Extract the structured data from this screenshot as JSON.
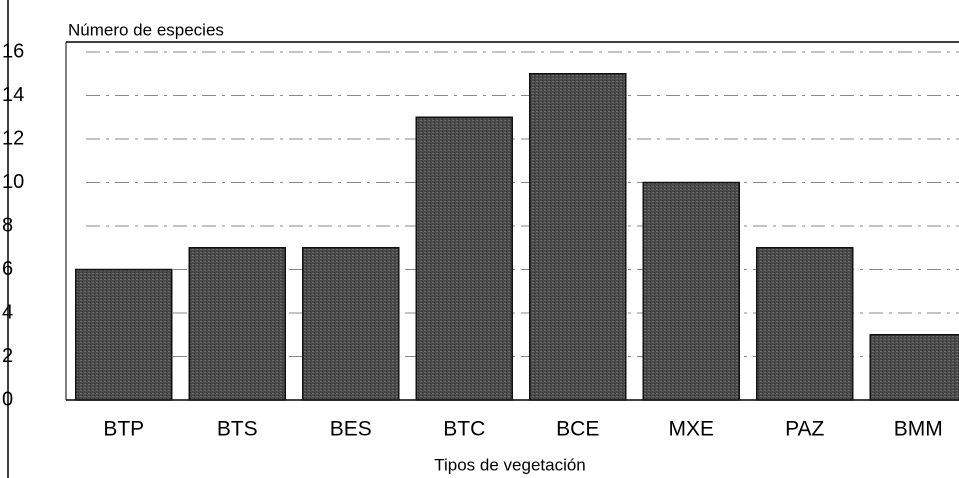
{
  "chart_data": {
    "type": "bar",
    "y_label": "Número de especies",
    "x_label": "Tipos de vegetación",
    "categories": [
      "BTP",
      "BTS",
      "BES",
      "BTC",
      "BCE",
      "MXE",
      "PAZ",
      "BMM"
    ],
    "values": [
      6,
      7,
      7,
      13,
      15,
      10,
      7,
      3
    ],
    "color": "#4d4d4d",
    "ylim": [
      0,
      16
    ],
    "yticks": [
      0,
      2,
      4,
      6,
      8,
      10,
      12,
      14,
      16
    ],
    "grid": true
  }
}
